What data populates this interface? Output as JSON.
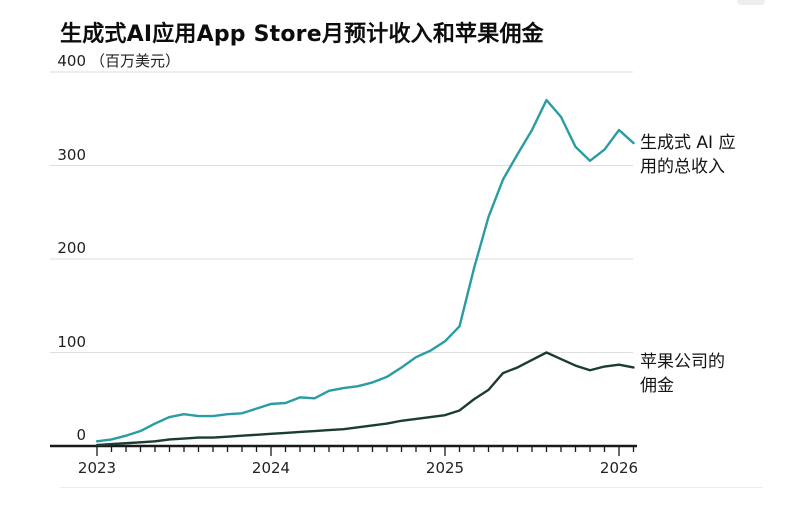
{
  "title": "生成式AI应用App Store月预计收入和苹果佣金",
  "annotations": {
    "revenue": {
      "line1": "生成式 AI 应",
      "line2": "用的总收入"
    },
    "commission": {
      "line1": "苹果公司的",
      "line2": "佣金"
    }
  },
  "chart_data": {
    "type": "line",
    "title": "生成式AI应用App Store月预计收入和苹果佣金",
    "unit_label": "（百万美元）",
    "ylabel": "",
    "xlabel": "",
    "ylim": [
      0,
      400
    ],
    "y_ticks": [
      0,
      100,
      200,
      300,
      400
    ],
    "x_tick_labels": [
      "2023",
      "2024",
      "2025",
      "2026"
    ],
    "x_start": "2023-01",
    "x_end": "2026-02",
    "x_interval": "month",
    "grid": "horizontal",
    "legend_position": "right-annotations",
    "axis_color": "#1a1a1a",
    "grid_color": "#dedede",
    "series": [
      {
        "name": "生成式 AI 应用的总收入",
        "color": "#2a9da2",
        "values": [
          5,
          7,
          11,
          16,
          24,
          31,
          34,
          32,
          32,
          34,
          35,
          40,
          45,
          46,
          52,
          51,
          59,
          62,
          64,
          68,
          74,
          84,
          95,
          102,
          112,
          128,
          190,
          245,
          285,
          312,
          338,
          370,
          352,
          320,
          305,
          317,
          338,
          324
        ]
      },
      {
        "name": "苹果公司的佣金",
        "color": "#1b3c35",
        "values": [
          1,
          2,
          3,
          4,
          5,
          7,
          8,
          9,
          9,
          10,
          11,
          12,
          13,
          14,
          15,
          16,
          17,
          18,
          20,
          22,
          24,
          27,
          29,
          31,
          33,
          38,
          50,
          60,
          78,
          84,
          92,
          100,
          93,
          86,
          81,
          85,
          87,
          84
        ]
      }
    ]
  }
}
